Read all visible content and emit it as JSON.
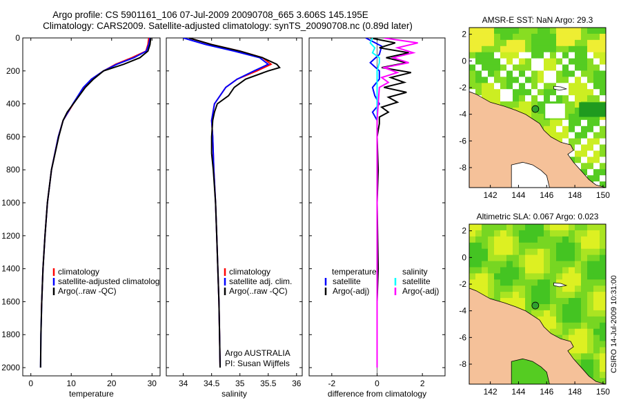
{
  "header": {
    "line1": "Argo profile: CS 5901161_106 07-Jul-2009 20090708_665 3.606S 145.195E",
    "line2": "Climatology: CARS2009. Satellite-adjusted climatology: synTS_20090708.nc (0.89d later)"
  },
  "side_note": "CSIRO 14-Jul-2009 10:31:00",
  "colors": {
    "climatology": "#ff0000",
    "satellite": "#0000ff",
    "argo": "#000000",
    "sal_sat": "#00ffff",
    "sal_argo": "#ff00ff",
    "land": "#f5c199",
    "sea_green": "#44cc22",
    "yellow": "#ffff33"
  },
  "chart_data": [
    {
      "type": "line",
      "xlabel": "temperature",
      "xlim": [
        -2,
        32
      ],
      "xticks": [
        "0",
        "10",
        "20",
        "30"
      ],
      "ylim": [
        2050,
        0
      ],
      "yticks": [
        "0",
        "200",
        "400",
        "600",
        "800",
        "1000",
        "1200",
        "1400",
        "1600",
        "1800",
        "2000"
      ],
      "legend": [
        "climatology",
        "satellite-adjusted climatolog",
        "Argo(..raw -QC)"
      ],
      "series": [
        {
          "name": "climatology",
          "depth": [
            0,
            40,
            80,
            120,
            160,
            200,
            250,
            300,
            400,
            500,
            600,
            800,
            1000,
            1200,
            1400,
            1600,
            1650
          ],
          "values": [
            29.2,
            29,
            28.5,
            25,
            21,
            18,
            15,
            13.2,
            10.5,
            8,
            6.8,
            5.1,
            4.1,
            3.5,
            3.0,
            2.7,
            2.6
          ]
        },
        {
          "name": "satellite-adjusted climatology",
          "depth": [
            0,
            40,
            80,
            120,
            160,
            200,
            250,
            300,
            400,
            500,
            600,
            800,
            1000,
            1200,
            1400,
            1600,
            1800,
            2000
          ],
          "values": [
            29.5,
            29.2,
            28.6,
            25.5,
            21.3,
            18,
            15,
            13,
            10.4,
            8,
            6.8,
            5.1,
            4.1,
            3.5,
            3.0,
            2.7,
            2.5,
            2.4
          ]
        },
        {
          "name": "Argo(..raw -QC)",
          "depth": [
            0,
            40,
            80,
            120,
            160,
            200,
            250,
            300,
            350,
            400,
            450,
            500,
            600,
            800,
            1000,
            1200,
            1400,
            1600,
            1800,
            2000
          ],
          "values": [
            29.7,
            29.5,
            29,
            27,
            23,
            18,
            15.5,
            13.5,
            12,
            10.5,
            9,
            8,
            6.9,
            5.1,
            4.1,
            3.5,
            3.0,
            2.7,
            2.5,
            2.4
          ]
        }
      ]
    },
    {
      "type": "line",
      "xlabel": "salinity",
      "xlim": [
        33.7,
        36.1
      ],
      "xticks": [
        "34",
        "34.5",
        "35",
        "35.5",
        "36"
      ],
      "ylim": [
        2050,
        0
      ],
      "legend": [
        "climatology",
        "satellite adj. clim.",
        "Argo(..raw -QC)"
      ],
      "annotation": [
        "Argo AUSTRALIA",
        "PI: Susan Wijffels"
      ],
      "series": [
        {
          "name": "climatology",
          "depth": [
            0,
            40,
            80,
            120,
            160,
            200,
            250,
            300,
            400,
            500,
            600,
            700,
            800,
            1000,
            1200,
            1400,
            1600,
            1800,
            2000
          ],
          "values": [
            34.1,
            34.5,
            35.0,
            35.4,
            35.55,
            35.3,
            34.95,
            34.75,
            34.55,
            34.5,
            34.52,
            34.53,
            34.54,
            34.57,
            34.59,
            34.61,
            34.63,
            34.64,
            34.65
          ]
        },
        {
          "name": "satellite adj. clim.",
          "depth": [
            0,
            40,
            80,
            120,
            160,
            200,
            250,
            300,
            400,
            500,
            600,
            700,
            800,
            1000,
            1200,
            1400,
            1600,
            1800,
            2000
          ],
          "values": [
            34.0,
            34.4,
            34.9,
            35.35,
            35.5,
            35.25,
            34.95,
            34.75,
            34.55,
            34.5,
            34.52,
            34.53,
            34.54,
            34.57,
            34.59,
            34.61,
            34.63,
            34.64,
            34.65
          ]
        },
        {
          "name": "Argo(..raw -QC)",
          "depth": [
            0,
            40,
            80,
            120,
            160,
            180,
            200,
            250,
            300,
            350,
            400,
            450,
            500,
            600,
            700,
            800,
            1000,
            1200,
            1400,
            1600,
            1800,
            2000
          ],
          "values": [
            34.1,
            34.5,
            35.0,
            35.4,
            35.65,
            35.7,
            35.5,
            35.1,
            34.9,
            34.8,
            34.6,
            34.55,
            34.52,
            34.5,
            34.5,
            34.53,
            34.57,
            34.59,
            34.61,
            34.63,
            34.64,
            34.65
          ]
        }
      ]
    },
    {
      "type": "line",
      "xlabel": "difference from climatology",
      "xlim": [
        -3,
        3
      ],
      "xticks": [
        "-2",
        "0",
        "2"
      ],
      "ylim": [
        2050,
        0
      ],
      "legend_left_title": "temperature",
      "legend_left": [
        "satellite",
        "Argo(-adj)"
      ],
      "legend_right_title": "salinity",
      "legend_right": [
        "satellite",
        "Argo(-adj)"
      ],
      "series": [
        {
          "name": "temperature satellite",
          "depth": [
            0,
            50,
            100,
            150,
            200,
            250,
            300,
            350,
            400,
            450,
            500,
            600,
            800,
            1000,
            1400,
            2000
          ],
          "values": [
            -0.5,
            0.2,
            0.1,
            -0.3,
            0.1,
            0.1,
            -0.2,
            -0.1,
            0.1,
            -0.2,
            0,
            0,
            0,
            0,
            0,
            0
          ]
        },
        {
          "name": "temperature Argo(-adj)",
          "depth": [
            0,
            30,
            60,
            90,
            120,
            150,
            180,
            210,
            240,
            270,
            300,
            330,
            360,
            390,
            420,
            450,
            480,
            520,
            600,
            800,
            1000,
            1400,
            1600,
            2000
          ],
          "values": [
            -0.3,
            0.8,
            0.1,
            1.4,
            0.4,
            1.3,
            0.2,
            1.5,
            0.6,
            1.2,
            0.3,
            1.3,
            0.5,
            0.9,
            0.2,
            0.5,
            0.1,
            0.1,
            0,
            0.05,
            0,
            0.05,
            0,
            0
          ]
        },
        {
          "name": "salinity satellite",
          "depth": [
            0,
            30,
            60,
            90,
            120,
            150,
            200,
            300,
            400,
            500,
            600,
            800,
            1000,
            2000
          ],
          "values": [
            -0.2,
            -0.3,
            -0.1,
            -0.2,
            0.1,
            0.1,
            0,
            0,
            0,
            0,
            0,
            0,
            0,
            0
          ]
        },
        {
          "name": "salinity Argo(-adj)",
          "depth": [
            0,
            30,
            60,
            90,
            120,
            150,
            180,
            210,
            240,
            270,
            300,
            400,
            500,
            600,
            800,
            1000,
            2000
          ],
          "values": [
            0.3,
            1.8,
            0.9,
            1.6,
            0.7,
            1.4,
            0.3,
            0.9,
            0.2,
            0.5,
            0.1,
            0.05,
            0,
            0,
            0,
            0,
            0
          ]
        }
      ]
    },
    {
      "type": "heatmap",
      "title": "AMSR-E SST: NaN Argo: 29.3",
      "xlim": [
        140.5,
        150.2
      ],
      "ylim": [
        -9.5,
        2.5
      ],
      "xticks": [
        "142",
        "144",
        "146",
        "148",
        "150"
      ],
      "yticks": [
        "2",
        "0",
        "-2",
        "-4",
        "-6",
        "-8"
      ],
      "marker": {
        "lon": 145.195,
        "lat": -3.606
      }
    },
    {
      "type": "heatmap",
      "title": "Altimetric SLA: 0.067 Argo: 0.023",
      "xlim": [
        140.5,
        150.2
      ],
      "ylim": [
        -9.5,
        2.5
      ],
      "xticks": [
        "142",
        "144",
        "146",
        "148",
        "150"
      ],
      "yticks": [
        "2",
        "0",
        "-2",
        "-4",
        "-6",
        "-8"
      ],
      "marker": {
        "lon": 145.195,
        "lat": -3.606
      }
    }
  ]
}
